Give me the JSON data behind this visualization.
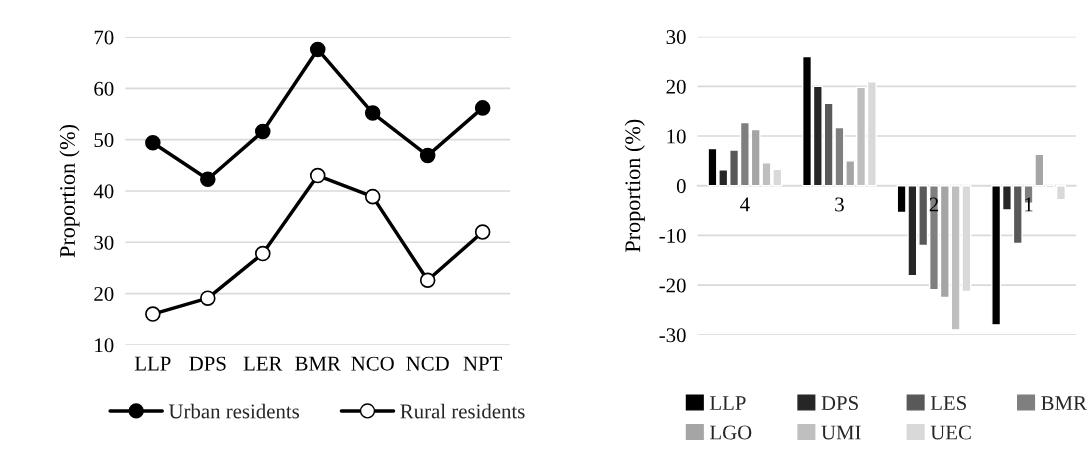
{
  "chart_data": [
    {
      "type": "line",
      "ylabel": "Proportion (%)",
      "categories": [
        "LLP",
        "DPS",
        "LER",
        "BMR",
        "NCO",
        "NCD",
        "NPT"
      ],
      "ylim": [
        10,
        70
      ],
      "yticks": [
        10,
        20,
        30,
        40,
        50,
        60,
        70
      ],
      "grid": "y",
      "legend": "bottom",
      "marker": "circle",
      "line_style": "solid",
      "series": [
        {
          "name": "Urban residents",
          "color": "#000000",
          "values": [
            49.4,
            42.3,
            51.6,
            67.6,
            55.2,
            46.9,
            56.2
          ]
        },
        {
          "name": "Rural residents",
          "color": "#ffffff",
          "values": [
            16.0,
            19.1,
            27.8,
            43.0,
            38.9,
            22.6,
            32.0
          ]
        }
      ]
    },
    {
      "type": "bar",
      "ylabel": "Proportion (%)",
      "categories": [
        "4",
        "3",
        "2",
        "1"
      ],
      "ylim": [
        -30,
        30
      ],
      "yticks": [
        -30,
        -20,
        -10,
        0,
        10,
        20,
        30
      ],
      "grid": "y",
      "legend": "bottom",
      "series": [
        {
          "name": "LLP",
          "color": "#000000",
          "values": [
            7.5,
            26.0,
            -5.4,
            -28.0
          ]
        },
        {
          "name": "DPS",
          "color": "#262626",
          "values": [
            3.2,
            20.0,
            -18.1,
            -4.9
          ]
        },
        {
          "name": "LES",
          "color": "#595959",
          "values": [
            7.2,
            16.6,
            -12.0,
            -11.6
          ]
        },
        {
          "name": "BMR",
          "color": "#7f7f7f",
          "values": [
            12.7,
            11.7,
            -20.9,
            -3.5
          ]
        },
        {
          "name": "LGO",
          "color": "#a5a5a5",
          "values": [
            11.3,
            5.0,
            -22.5,
            6.3
          ]
        },
        {
          "name": "UMI",
          "color": "#bfbfbf",
          "values": [
            4.6,
            19.8,
            -29.0,
            -0.4
          ]
        },
        {
          "name": "UEC",
          "color": "#d9d9d9",
          "values": [
            3.3,
            20.9,
            -21.3,
            -2.8
          ]
        }
      ]
    }
  ]
}
